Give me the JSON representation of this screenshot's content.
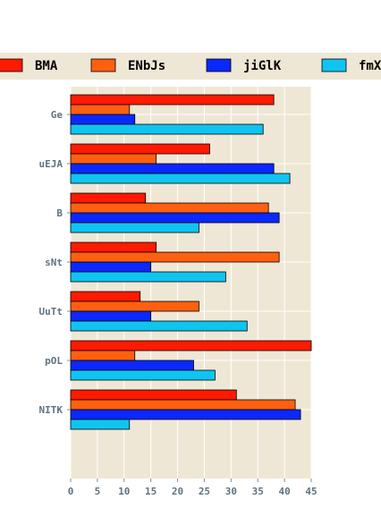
{
  "chart_data": {
    "type": "bar",
    "orientation": "horizontal",
    "title": "",
    "xlabel": "",
    "ylabel": "",
    "categories": [
      "Ge",
      "uEJA",
      "B",
      "sNt",
      "UuTt",
      "pOL",
      "NITK"
    ],
    "series": [
      {
        "name": "BMA",
        "color": "#ff1a00",
        "values": [
          38,
          26,
          14,
          16,
          13,
          45,
          31
        ]
      },
      {
        "name": "ENbJs",
        "color": "#ff6010",
        "values": [
          11,
          16,
          37,
          39,
          24,
          12,
          42
        ]
      },
      {
        "name": "jiGlK",
        "color": "#0a28ff",
        "values": [
          12,
          38,
          39,
          15,
          15,
          23,
          43
        ]
      },
      {
        "name": "fmX",
        "color": "#10c4f0",
        "values": [
          36,
          41,
          24,
          29,
          33,
          27,
          11
        ]
      }
    ],
    "xlim": [
      0,
      45
    ],
    "xticks": [
      0,
      5,
      10,
      15,
      20,
      25,
      30,
      35,
      40,
      45
    ],
    "grid": true,
    "legend_position": "top",
    "colors": {
      "plot_background": "#efe7d5",
      "legend_background": "#efe7d5",
      "tick_label": "#5f7380",
      "grid": "#ffffff"
    }
  }
}
